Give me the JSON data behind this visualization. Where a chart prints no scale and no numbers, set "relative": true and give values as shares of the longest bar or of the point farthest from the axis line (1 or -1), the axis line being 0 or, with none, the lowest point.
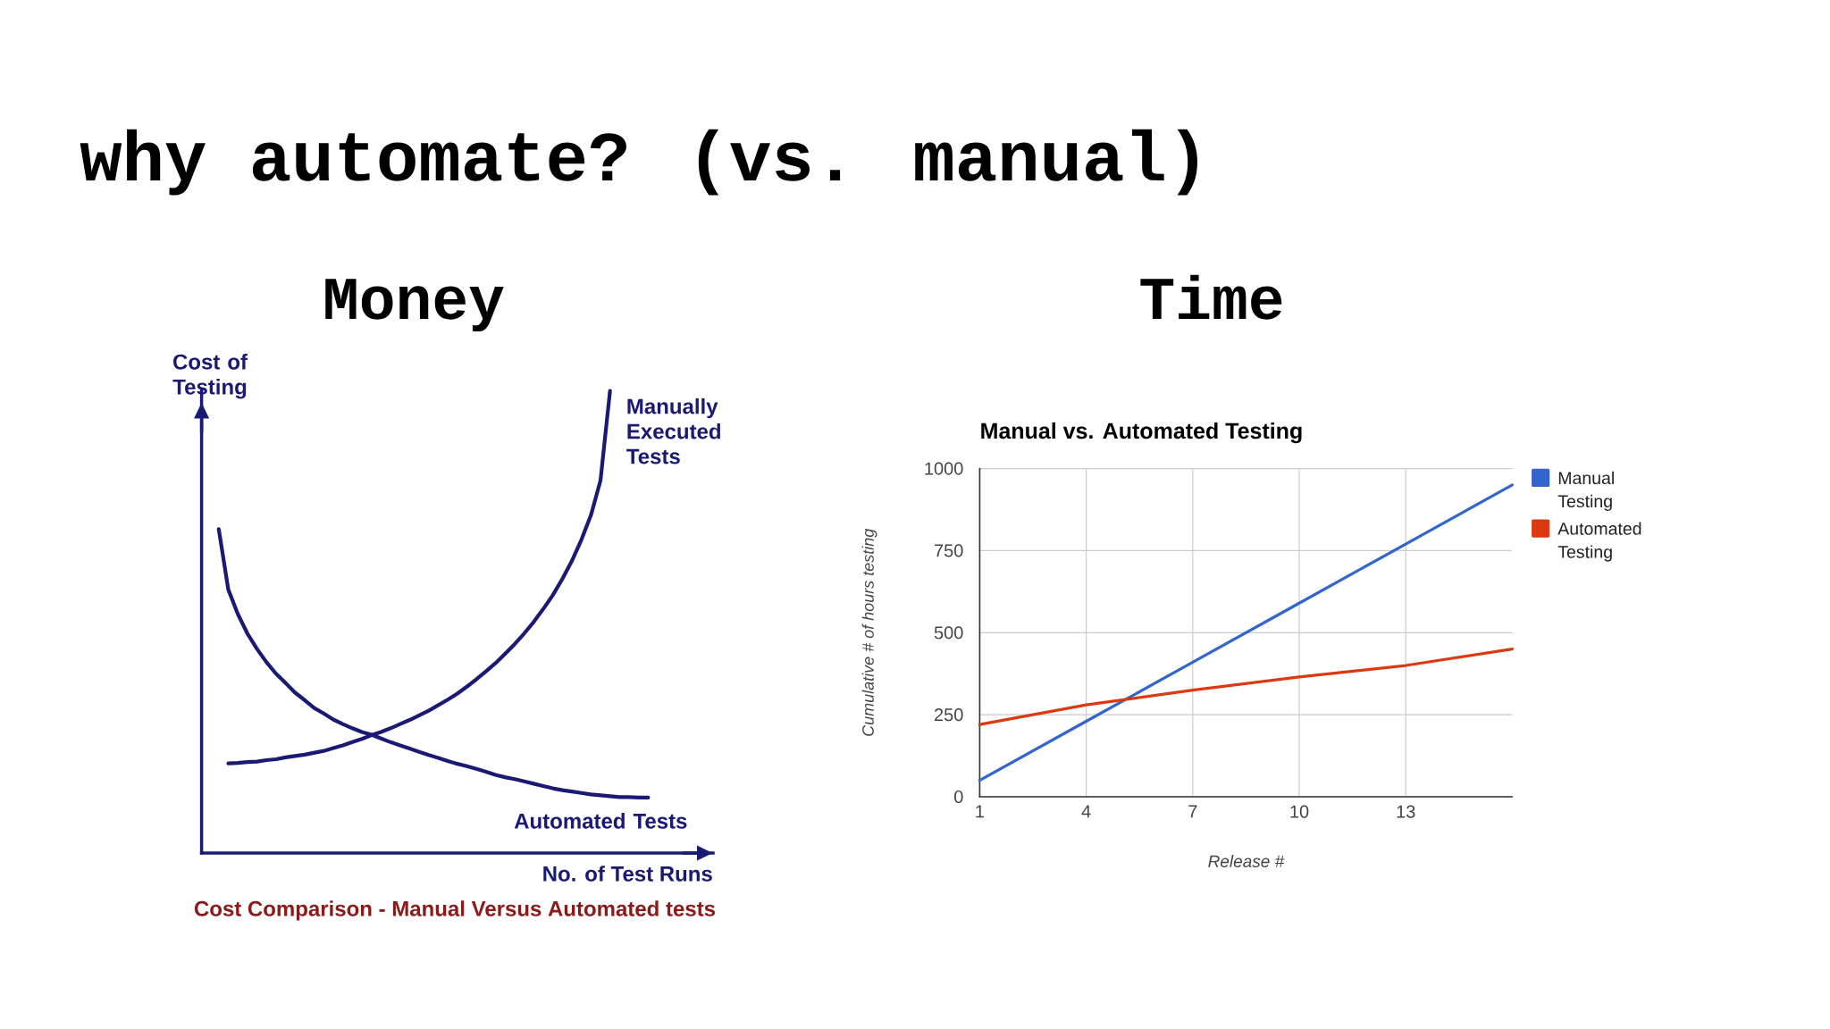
{
  "chart_data": [
    {
      "type": "other",
      "title": "why automate? (vs. manual)"
    },
    {
      "type": "line",
      "title": "Money",
      "xlabel": "No. of Test Runs",
      "ylabel": "Cost of Testing",
      "annotations": [
        "Cost Comparison - Manual Versus Automated tests"
      ],
      "relative": true,
      "categories": [
        null,
        null,
        null,
        null,
        null,
        null,
        null,
        null,
        null,
        null,
        null,
        null,
        null,
        null,
        null,
        null,
        null,
        null,
        null,
        null,
        null,
        null,
        null,
        null,
        null,
        null,
        null,
        null,
        null,
        null,
        null,
        null,
        null,
        null,
        null,
        null,
        null,
        null,
        null,
        null,
        null,
        null,
        null,
        null,
        null,
        null
      ],
      "series": [
        {
          "name": "Manually Executed Tests",
          "color": "#1a1a75",
          "values": [
            null,
            0.194,
            0.195,
            0.197,
            0.198,
            0.201,
            0.203,
            0.207,
            0.21,
            0.213,
            0.217,
            0.221,
            0.227,
            0.233,
            0.24,
            0.247,
            0.255,
            0.262,
            0.27,
            0.279,
            0.288,
            0.298,
            0.308,
            0.32,
            0.332,
            0.345,
            0.36,
            0.376,
            0.393,
            0.411,
            0.431,
            0.452,
            0.475,
            0.5,
            0.528,
            0.558,
            0.593,
            0.632,
            0.678,
            0.731,
            0.806,
            1,
            null,
            null,
            null,
            null
          ]
        },
        {
          "name": "Automated Tests",
          "color": "#1a1a75",
          "values": [
            0.701,
            0.57,
            0.517,
            0.475,
            0.442,
            0.413,
            0.388,
            0.368,
            0.347,
            0.331,
            0.314,
            0.302,
            0.289,
            0.279,
            0.27,
            0.262,
            0.256,
            0.248,
            0.24,
            0.233,
            0.226,
            0.219,
            0.212,
            0.206,
            0.199,
            0.193,
            0.188,
            0.182,
            0.176,
            0.169,
            0.164,
            0.16,
            0.155,
            0.15,
            0.145,
            0.14,
            0.136,
            0.133,
            0.13,
            0.127,
            0.125,
            0.123,
            0.121,
            0.121,
            0.12,
            0.12
          ]
        }
      ]
    },
    {
      "type": "line",
      "title": "Time",
      "subtitle": "Manual vs. Automated Testing",
      "xlabel": "Release #",
      "ylabel": "Cumulative # of hours testing",
      "x": [
        1,
        4,
        7,
        10,
        13,
        16
      ],
      "xlim": [
        1,
        16
      ],
      "ylim": [
        0,
        1000
      ],
      "xticks": [
        1,
        4,
        7,
        10,
        13
      ],
      "yticks": [
        0,
        250,
        500,
        750,
        1000
      ],
      "grid": true,
      "legend": "top right",
      "series": [
        {
          "name": "Manual Testing",
          "color": "#3366cc",
          "values": [
            50,
            230,
            410,
            590,
            770,
            950
          ]
        },
        {
          "name": "Automated Testing",
          "color": "#dc3912",
          "values": [
            220,
            280,
            325,
            365,
            400,
            450
          ]
        }
      ]
    }
  ]
}
